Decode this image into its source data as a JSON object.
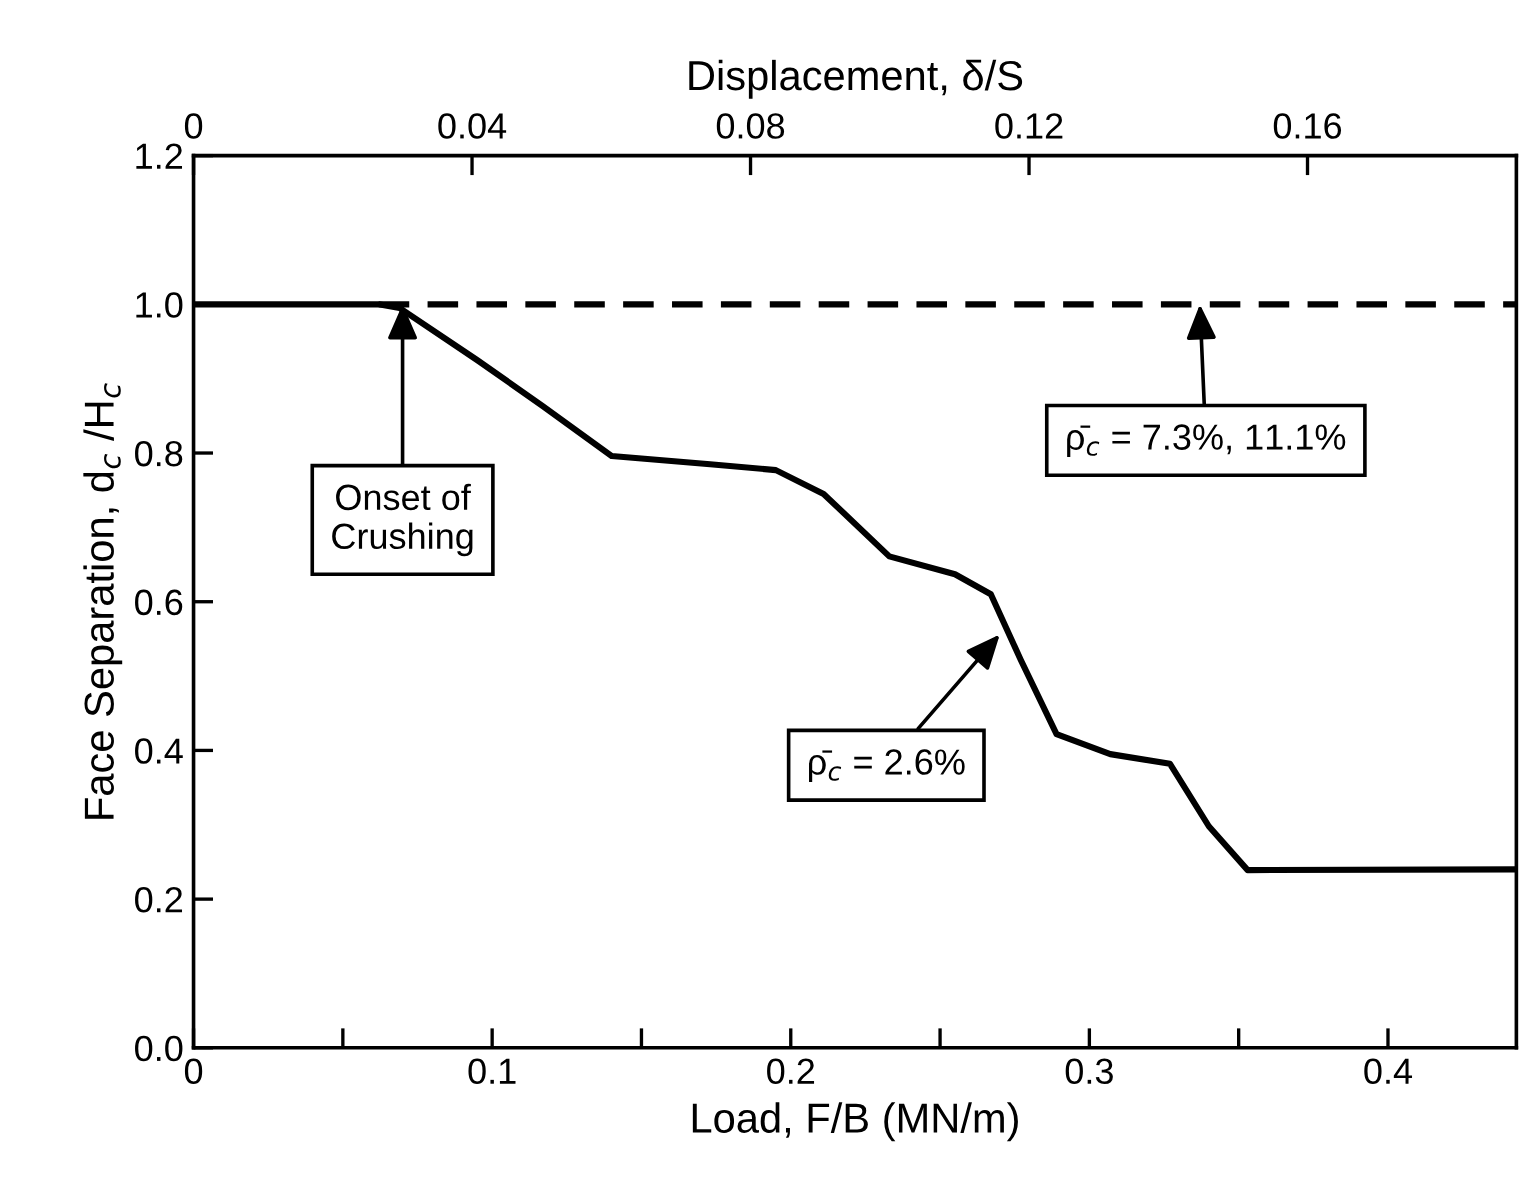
{
  "chart_data": {
    "type": "line",
    "xlabel": "Load, F/B (MN/m)",
    "ylabel": "Face Separation, d$_{c}$ /H$_{c}$",
    "x2label": "Displacement, δ/S",
    "xlim": [
      0,
      0.443
    ],
    "ylim": [
      0,
      1.2
    ],
    "xticks": [
      0,
      {
        "value": 0.05,
        "label": null
      },
      0.1,
      {
        "value": 0.15,
        "label": null
      },
      0.2,
      {
        "value": 0.25,
        "label": null
      },
      0.3,
      {
        "value": 0.35,
        "label": null
      },
      0.4
    ],
    "yticks": [
      {
        "value": 0,
        "label": "0.0"
      },
      0.2,
      0.4,
      0.6,
      0.8,
      {
        "value": 1,
        "label": "1.0"
      },
      1.2
    ],
    "x2lim": [
      0,
      0.19
    ],
    "x2ticks": [
      0,
      0.04,
      0.08,
      0.12,
      0.16
    ],
    "series": [
      {
        "color": "#000000",
        "line_style": "solid",
        "x": [
          0,
          0.062,
          0.069,
          0.095,
          0.117,
          0.14,
          0.173,
          0.195,
          0.211,
          0.233,
          0.255,
          0.267,
          0.277,
          0.289,
          0.307,
          0.327,
          0.34,
          0.353,
          0.443
        ],
        "values": [
          1.0,
          1.0,
          0.995,
          0.925,
          0.863,
          0.796,
          0.785,
          0.777,
          0.745,
          0.661,
          0.637,
          0.61,
          0.522,
          0.422,
          0.395,
          0.382,
          0.298,
          0.239,
          0.24
        ]
      },
      {
        "color": "#000000",
        "line_style": "dashed",
        "x": [
          0.062,
          0.443
        ],
        "values": [
          1.0,
          1.0
        ]
      }
    ],
    "annotations": [
      {
        "text": "Onset of\nCrushing",
        "x": 0.07,
        "y": 1.0
      },
      {
        "text": "ρ̄$_{c}$ = 7.3%, 11.1%",
        "x": 0.337,
        "y": 1.0
      },
      {
        "text": "ρ̄$_{c}$ = 2.6%",
        "x": 0.27,
        "y": 0.556
      }
    ]
  }
}
